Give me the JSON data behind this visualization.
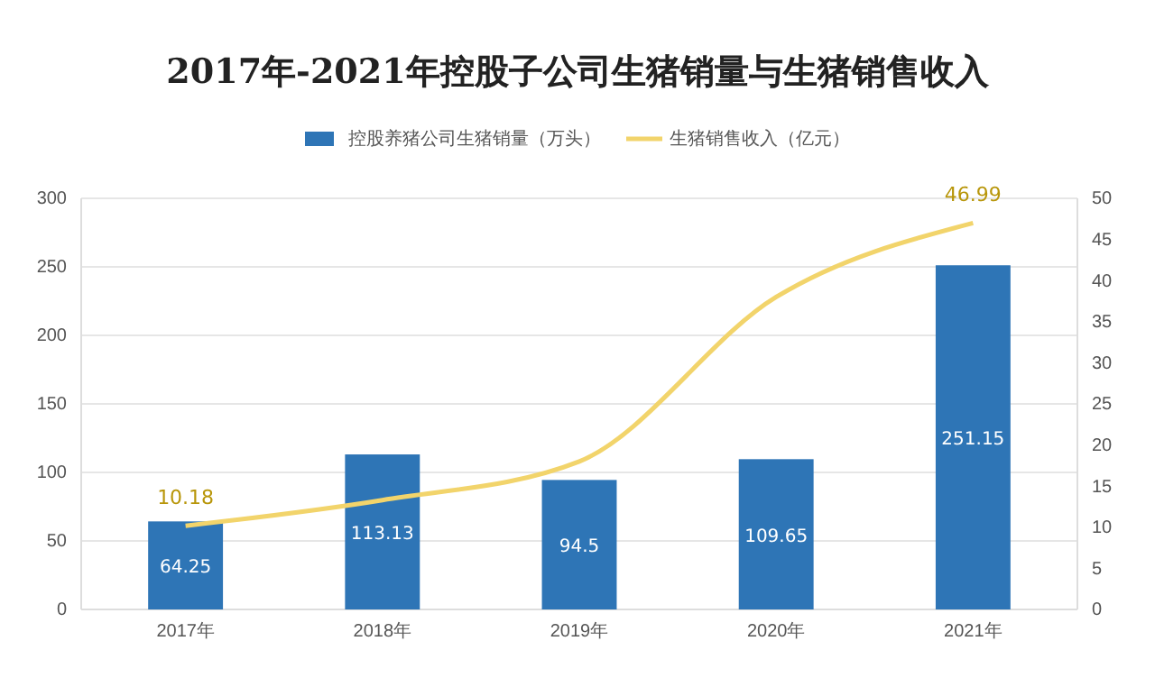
{
  "chart_data": {
    "type": "bar",
    "title": "2017年-2021年控股子公司生猪销量与生猪销售收入",
    "categories": [
      "2017年",
      "2018年",
      "2019年",
      "2020年",
      "2021年"
    ],
    "series": [
      {
        "name": "控股养猪公司生猪销量（万头）",
        "color": "#2e75b6",
        "values": [
          64.25,
          113.13,
          94.5,
          109.65,
          251.15
        ],
        "value_labels": [
          "64.25",
          "113.13",
          "94.5",
          "109.65",
          "251.15"
        ]
      },
      {
        "name": "生猪销售收入（亿元）",
        "type": "line",
        "axis": "y2",
        "color": "#f2d46b",
        "values": [
          10.18,
          13.3,
          18,
          38,
          46.99
        ],
        "value_labels": [
          "10.18",
          null,
          null,
          null,
          "46.99"
        ]
      }
    ],
    "ylim": [
      0,
      300
    ],
    "yticks": [
      0,
      50,
      100,
      150,
      200,
      250,
      300
    ],
    "y2lim": [
      0,
      50
    ],
    "y2ticks": [
      0,
      5,
      10,
      15,
      20,
      25,
      30,
      35,
      40,
      45,
      50
    ],
    "grid": "y",
    "legend": "top"
  }
}
